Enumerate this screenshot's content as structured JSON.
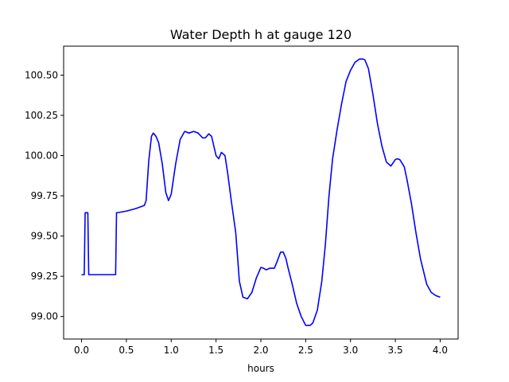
{
  "chart_data": {
    "type": "line",
    "title": "Water Depth h at gauge 120",
    "xlabel": "hours",
    "ylabel": "",
    "xlim": [
      -0.2,
      4.2
    ],
    "ylim": [
      98.86,
      100.68
    ],
    "x_ticks": [
      0.0,
      0.5,
      1.0,
      1.5,
      2.0,
      2.5,
      3.0,
      3.5,
      4.0
    ],
    "x_tick_labels": [
      "0.0",
      "0.5",
      "1.0",
      "1.5",
      "2.0",
      "2.5",
      "3.0",
      "3.5",
      "4.0"
    ],
    "y_ticks": [
      99.0,
      99.25,
      99.5,
      99.75,
      100.0,
      100.25,
      100.5
    ],
    "y_tick_labels": [
      "99.00",
      "99.25",
      "99.50",
      "99.75",
      "100.00",
      "100.25",
      "100.50"
    ],
    "grid": false,
    "series": [
      {
        "color": "#0000ff",
        "x": [
          0.0,
          0.02,
          0.03,
          0.04,
          0.07,
          0.08,
          0.1,
          0.2,
          0.3,
          0.38,
          0.39,
          0.4,
          0.5,
          0.6,
          0.65,
          0.7,
          0.72,
          0.75,
          0.78,
          0.8,
          0.83,
          0.86,
          0.9,
          0.94,
          0.97,
          1.0,
          1.05,
          1.1,
          1.15,
          1.2,
          1.25,
          1.3,
          1.35,
          1.38,
          1.42,
          1.45,
          1.5,
          1.53,
          1.56,
          1.6,
          1.63,
          1.67,
          1.72,
          1.76,
          1.8,
          1.85,
          1.9,
          1.95,
          2.0,
          2.03,
          2.06,
          2.1,
          2.15,
          2.18,
          2.22,
          2.25,
          2.28,
          2.3,
          2.35,
          2.4,
          2.45,
          2.5,
          2.55,
          2.58,
          2.63,
          2.68,
          2.72,
          2.76,
          2.8,
          2.85,
          2.9,
          2.95,
          3.0,
          3.05,
          3.1,
          3.14,
          3.16,
          3.2,
          3.25,
          3.3,
          3.35,
          3.4,
          3.45,
          3.5,
          3.52,
          3.55,
          3.6,
          3.63,
          3.68,
          3.73,
          3.78,
          3.85,
          3.9,
          3.95,
          4.0
        ],
        "y": [
          99.26,
          99.26,
          99.26,
          99.645,
          99.645,
          99.26,
          99.26,
          99.26,
          99.26,
          99.26,
          99.645,
          99.645,
          99.655,
          99.67,
          99.68,
          99.69,
          99.72,
          99.97,
          100.12,
          100.14,
          100.12,
          100.08,
          99.95,
          99.77,
          99.72,
          99.76,
          99.95,
          100.1,
          100.15,
          100.14,
          100.15,
          100.14,
          100.11,
          100.11,
          100.135,
          100.12,
          100.0,
          99.98,
          100.02,
          100.0,
          99.89,
          99.72,
          99.52,
          99.22,
          99.12,
          99.11,
          99.15,
          99.24,
          99.305,
          99.3,
          99.29,
          99.3,
          99.3,
          99.34,
          99.4,
          99.4,
          99.36,
          99.31,
          99.2,
          99.08,
          99.0,
          98.945,
          98.945,
          98.96,
          99.04,
          99.22,
          99.45,
          99.75,
          99.98,
          100.16,
          100.32,
          100.46,
          100.53,
          100.58,
          100.6,
          100.6,
          100.595,
          100.54,
          100.38,
          100.2,
          100.06,
          99.96,
          99.935,
          99.975,
          99.98,
          99.975,
          99.93,
          99.85,
          99.7,
          99.52,
          99.36,
          99.2,
          99.15,
          99.13,
          99.12
        ]
      }
    ]
  }
}
